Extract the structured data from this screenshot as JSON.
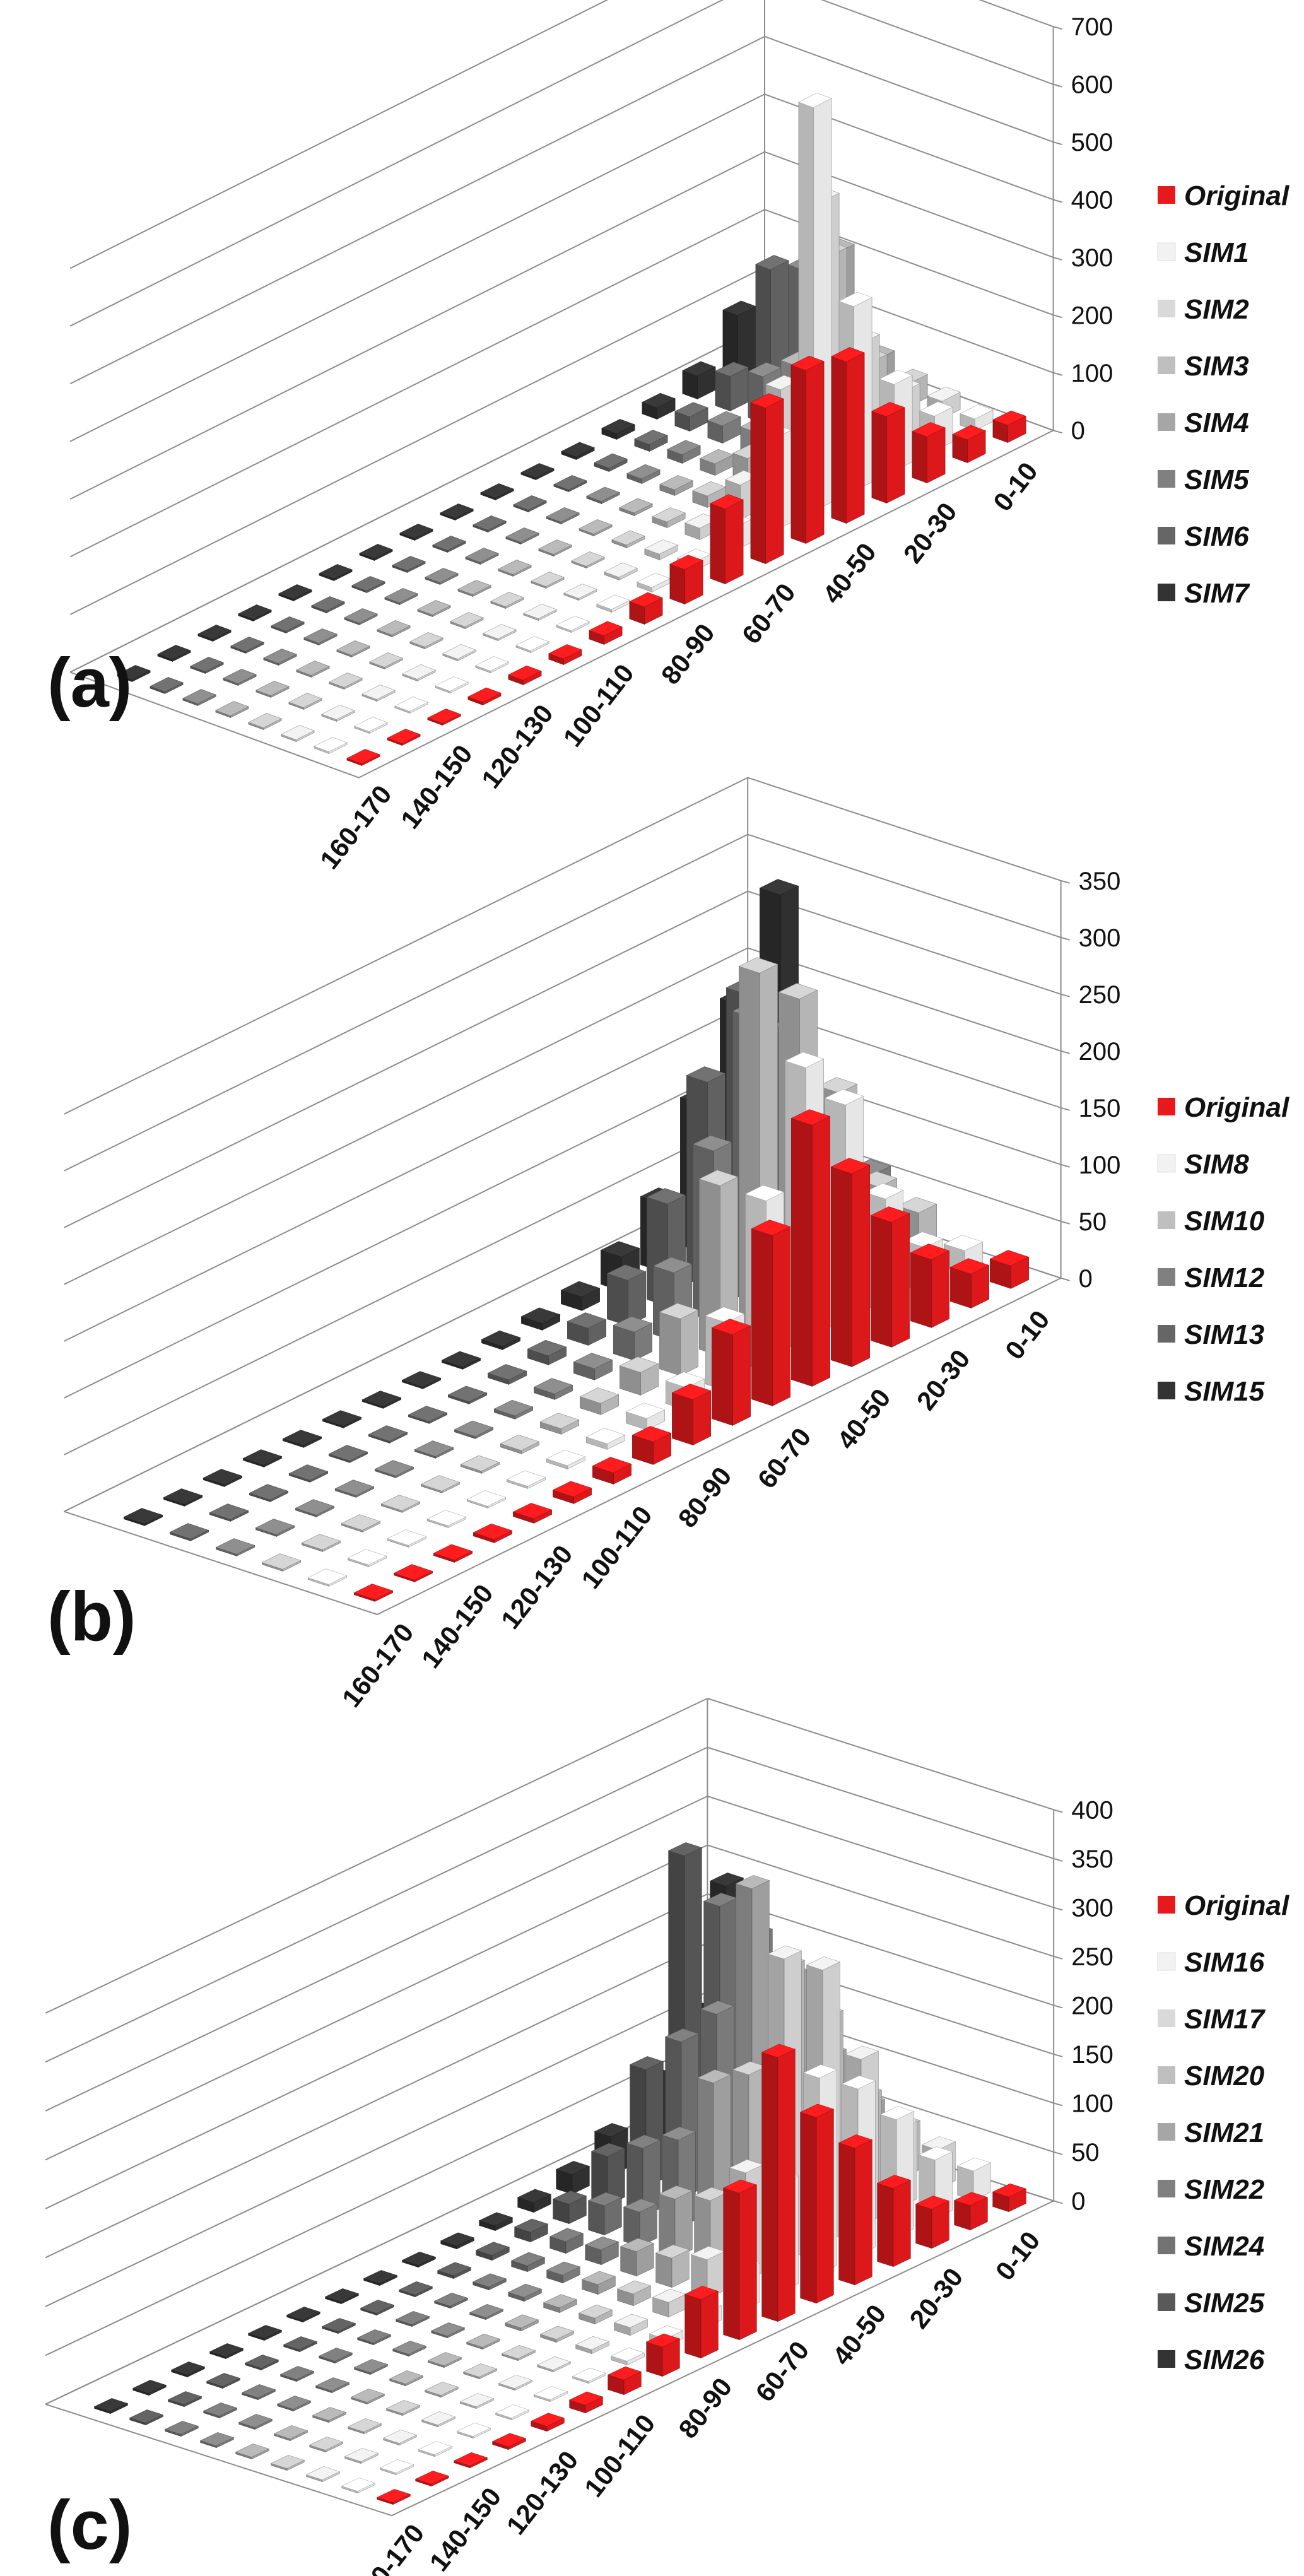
{
  "chart_data": [
    {
      "type": "bar",
      "subtype": "3d-column",
      "panel_label": "(a)",
      "categories": [
        "0-10",
        "10-20",
        "20-30",
        "30-40",
        "40-50",
        "50-60",
        "60-70",
        "70-80",
        "80-90",
        "90-100",
        "100-110",
        "110-120",
        "120-130",
        "130-140",
        "140-150",
        "150-160",
        "160-170"
      ],
      "category_labels_shown": [
        "0-10",
        "20-30",
        "40-50",
        "60-70",
        "80-90",
        "100-110",
        "120-130",
        "140-150",
        "160-170"
      ],
      "ylim": [
        0,
        700
      ],
      "yticks": [
        0,
        100,
        200,
        300,
        400,
        500,
        600,
        700
      ],
      "grid": true,
      "legend_position": "right",
      "series": [
        {
          "name": "Original",
          "color": "#e8191c",
          "values": [
            30,
            40,
            80,
            150,
            280,
            300,
            270,
            130,
            60,
            30,
            15,
            10,
            8,
            5,
            3,
            2,
            1
          ]
        },
        {
          "name": "SIM1",
          "color": "#f2f2f2",
          "values": [
            20,
            60,
            150,
            320,
            700,
            160,
            40,
            15,
            8,
            5,
            3,
            2,
            1,
            1,
            1,
            0,
            0
          ]
        },
        {
          "name": "SIM2",
          "color": "#d9d9d9",
          "values": [
            30,
            80,
            200,
            480,
            190,
            60,
            20,
            10,
            5,
            3,
            2,
            1,
            1,
            1,
            0,
            0,
            0
          ]
        },
        {
          "name": "SIM3",
          "color": "#bfbfbf",
          "values": [
            40,
            110,
            330,
            130,
            50,
            20,
            10,
            5,
            3,
            2,
            1,
            1,
            1,
            0,
            0,
            0,
            0
          ]
        },
        {
          "name": "SIM4",
          "color": "#a6a6a6",
          "values": [
            60,
            280,
            120,
            40,
            20,
            10,
            5,
            3,
            2,
            1,
            1,
            1,
            0,
            0,
            0,
            0,
            0
          ]
        },
        {
          "name": "SIM5",
          "color": "#808080",
          "values": [
            100,
            230,
            80,
            30,
            15,
            8,
            4,
            2,
            1,
            1,
            1,
            0,
            0,
            0,
            0,
            0,
            0
          ]
        },
        {
          "name": "SIM6",
          "color": "#666666",
          "values": [
            150,
            210,
            60,
            25,
            12,
            6,
            3,
            2,
            1,
            1,
            0,
            0,
            0,
            0,
            0,
            0,
            0
          ]
        },
        {
          "name": "SIM7",
          "color": "#333333",
          "values": [
            130,
            110,
            40,
            20,
            10,
            5,
            3,
            2,
            1,
            1,
            0,
            0,
            0,
            0,
            0,
            0,
            0
          ]
        }
      ]
    },
    {
      "type": "bar",
      "subtype": "3d-column",
      "panel_label": "(b)",
      "categories": [
        "0-10",
        "10-20",
        "20-30",
        "30-40",
        "40-50",
        "50-60",
        "60-70",
        "70-80",
        "80-90",
        "90-100",
        "100-110",
        "110-120",
        "120-130",
        "130-140",
        "140-150",
        "150-160",
        "160-170"
      ],
      "category_labels_shown": [
        "0-10",
        "20-30",
        "40-50",
        "60-70",
        "80-90",
        "100-110",
        "120-130",
        "140-150",
        "160-170"
      ],
      "ylim": [
        0,
        350
      ],
      "yticks": [
        0,
        50,
        100,
        150,
        200,
        250,
        300,
        350
      ],
      "grid": true,
      "legend_position": "right",
      "series": [
        {
          "name": "Original",
          "color": "#e8191c",
          "values": [
            20,
            30,
            60,
            110,
            170,
            230,
            150,
            80,
            40,
            20,
            10,
            6,
            4,
            3,
            2,
            1,
            1
          ]
        },
        {
          "name": "SIM8",
          "color": "#f2f2f2",
          "values": [
            20,
            40,
            100,
            200,
            250,
            150,
            60,
            20,
            10,
            5,
            3,
            2,
            1,
            1,
            0,
            0,
            0
          ]
        },
        {
          "name": "SIM10",
          "color": "#bfbfbf",
          "values": [
            40,
            80,
            180,
            280,
            320,
            150,
            50,
            20,
            10,
            5,
            3,
            2,
            1,
            1,
            0,
            0,
            0
          ]
        },
        {
          "name": "SIM12",
          "color": "#808080",
          "values": [
            60,
            120,
            220,
            250,
            150,
            60,
            25,
            10,
            5,
            3,
            2,
            1,
            1,
            0,
            0,
            0,
            0
          ]
        },
        {
          "name": "SIM13",
          "color": "#666666",
          "values": [
            80,
            180,
            240,
            180,
            90,
            40,
            15,
            8,
            4,
            2,
            1,
            1,
            0,
            0,
            0,
            0,
            0
          ]
        },
        {
          "name": "SIM15",
          "color": "#333333",
          "values": [
            280,
            200,
            130,
            60,
            30,
            12,
            6,
            3,
            2,
            1,
            1,
            0,
            0,
            0,
            0,
            0,
            0
          ]
        }
      ]
    },
    {
      "type": "bar",
      "subtype": "3d-column",
      "panel_label": "(c)",
      "categories": [
        "0-10",
        "10-20",
        "20-30",
        "30-40",
        "40-50",
        "50-60",
        "60-70",
        "70-80",
        "80-90",
        "90-100",
        "100-110",
        "110-120",
        "120-130",
        "130-140",
        "140-150",
        "150-160",
        "160-170"
      ],
      "category_labels_shown": [
        "0-10",
        "20-30",
        "40-50",
        "60-70",
        "80-90",
        "100-110",
        "120-130",
        "140-150",
        "160-170"
      ],
      "ylim": [
        0,
        400
      ],
      "yticks": [
        0,
        50,
        100,
        150,
        200,
        250,
        300,
        350,
        400
      ],
      "grid": true,
      "legend_position": "right",
      "series": [
        {
          "name": "Original",
          "color": "#e8191c",
          "values": [
            15,
            25,
            40,
            80,
            140,
            190,
            270,
            150,
            60,
            30,
            15,
            8,
            5,
            3,
            2,
            1,
            1
          ]
        },
        {
          "name": "SIM16",
          "color": "#f2f2f2",
          "values": [
            30,
            60,
            120,
            170,
            200,
            110,
            40,
            15,
            8,
            4,
            2,
            1,
            1,
            0,
            0,
            0,
            0
          ]
        },
        {
          "name": "SIM17",
          "color": "#d9d9d9",
          "values": [
            40,
            80,
            170,
            280,
            310,
            110,
            40,
            15,
            8,
            4,
            2,
            1,
            1,
            0,
            0,
            0,
            0
          ]
        },
        {
          "name": "SIM20",
          "color": "#bfbfbf",
          "values": [
            50,
            100,
            200,
            270,
            180,
            70,
            30,
            12,
            6,
            3,
            2,
            1,
            1,
            0,
            0,
            0,
            0
          ]
        },
        {
          "name": "SIM21",
          "color": "#a6a6a6",
          "values": [
            60,
            130,
            230,
            340,
            160,
            60,
            25,
            10,
            5,
            3,
            2,
            1,
            0,
            0,
            0,
            0,
            0
          ]
        },
        {
          "name": "SIM22",
          "color": "#808080",
          "values": [
            80,
            150,
            260,
            200,
            90,
            35,
            15,
            8,
            4,
            2,
            1,
            1,
            0,
            0,
            0,
            0,
            0
          ]
        },
        {
          "name": "SIM24",
          "color": "#737373",
          "values": [
            100,
            180,
            280,
            160,
            70,
            30,
            12,
            6,
            3,
            2,
            1,
            1,
            0,
            0,
            0,
            0,
            0
          ]
        },
        {
          "name": "SIM25",
          "color": "#595959",
          "values": [
            120,
            170,
            320,
            120,
            50,
            20,
            10,
            5,
            3,
            2,
            1,
            0,
            0,
            0,
            0,
            0,
            0
          ]
        },
        {
          "name": "SIM26",
          "color": "#333333",
          "values": [
            240,
            130,
            80,
            40,
            20,
            10,
            5,
            3,
            2,
            1,
            1,
            0,
            0,
            0,
            0,
            0,
            0
          ]
        }
      ]
    }
  ]
}
